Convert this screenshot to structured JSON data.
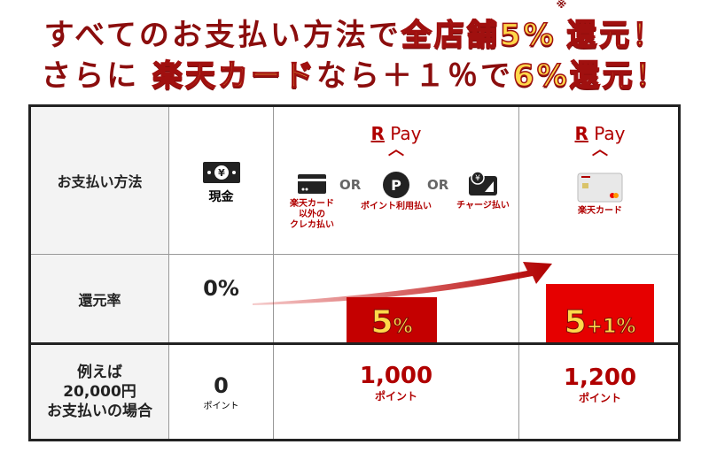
{
  "headline": {
    "line1_a": "すべてのお支払い方法で",
    "line1_b": "全店舗5%",
    "line1_note": "※",
    "line1_c": "還元！",
    "line2_a": "さらに",
    "line2_b": "楽天カード",
    "line2_c": "なら＋１％で",
    "line2_d": "6%還元！"
  },
  "table": {
    "row_headers": [
      "お支払い方法",
      "還元率",
      "例えば\n20,000円\nお支払いの場合"
    ],
    "cash": {
      "label": "現金",
      "rate": "0%",
      "points": "0",
      "unit": "ポイント"
    },
    "rpay_group": {
      "logo_r": "R",
      "logo_pay": "Pay",
      "items": [
        {
          "icon": "credit-card-icon",
          "label": "楽天カード\n以外の\nクレカ払い"
        },
        {
          "icon": "point-p-icon",
          "label": "ポイント利用払い",
          "glyph": "P"
        },
        {
          "icon": "charge-wallet-icon",
          "label": "チャージ払い",
          "glyph": "¥"
        }
      ],
      "or": "OR",
      "rate_main": "5",
      "rate_pct": "%",
      "rate_value": 5,
      "points": "1,000",
      "unit": "ポイント"
    },
    "rakuten_card": {
      "logo_r": "R",
      "logo_pay": "Pay",
      "label": "楽天カード",
      "rate_main": "5",
      "rate_plus": "+1",
      "rate_pct": "%",
      "rate_value": 6,
      "points": "1,200",
      "unit": "ポイント"
    }
  },
  "colors": {
    "brand_red": "#b00000",
    "bar_red": "#c40000",
    "bar_red_bright": "#e60000",
    "headline_dark": "#8b0d0d",
    "highlight_yellow": "#ffd84a"
  }
}
